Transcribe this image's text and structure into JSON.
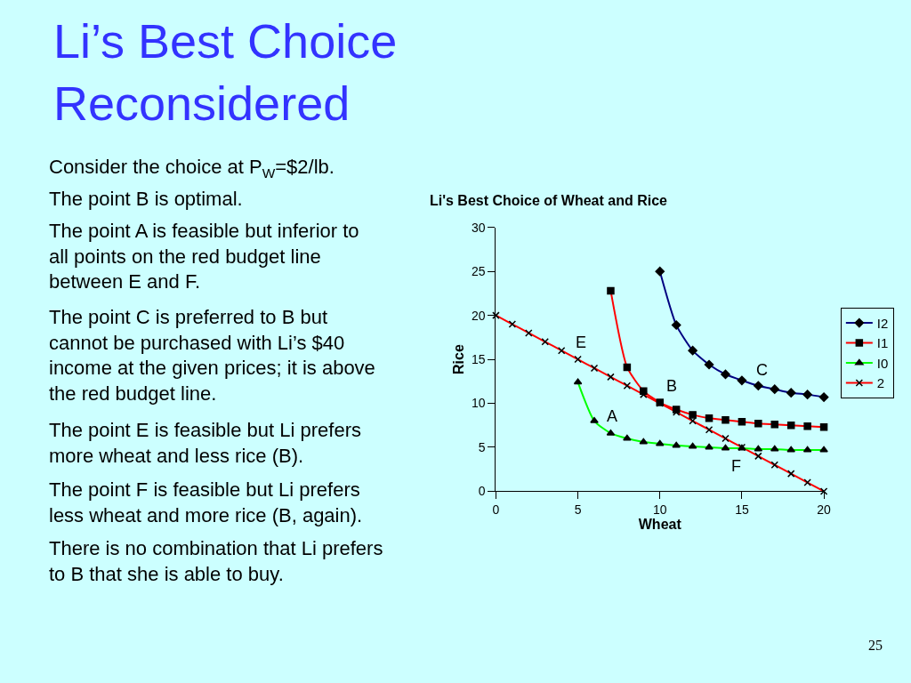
{
  "chart_data": {
    "type": "line",
    "title": "Li’s Best Choice Reconsidered",
    "subtitle": "Li's Best Choice of Wheat and Rice",
    "xlabel": "Wheat",
    "ylabel": "Rice",
    "xlim": [
      0,
      20
    ],
    "xticks": [
      0,
      5,
      10,
      15,
      20
    ],
    "ylim": [
      0,
      30
    ],
    "yticks": [
      0,
      5,
      10,
      15,
      20,
      25,
      30
    ],
    "grid": false,
    "legend": "right",
    "series": [
      {
        "name": "I2",
        "color": "#000080",
        "marker": "diamond",
        "x": [
          10,
          11,
          12,
          13,
          14,
          15,
          16,
          17,
          18,
          19,
          20
        ],
        "values": [
          25,
          18.9,
          16,
          14.4,
          13.3,
          12.6,
          12.0,
          11.6,
          11.2,
          11.0,
          10.7
        ]
      },
      {
        "name": "I1",
        "color": "#ff0000",
        "marker": "square",
        "x": [
          7,
          8,
          9,
          10,
          11,
          12,
          13,
          14,
          15,
          16,
          17,
          18,
          19,
          20
        ],
        "values": [
          22.8,
          14.1,
          11.4,
          10.1,
          9.3,
          8.7,
          8.3,
          8.1,
          7.9,
          7.7,
          7.6,
          7.5,
          7.4,
          7.3
        ]
      },
      {
        "name": "I0",
        "color": "#00ff00",
        "marker": "triangle",
        "x": [
          5,
          6,
          7,
          8,
          9,
          10,
          11,
          12,
          13,
          14,
          15,
          16,
          17,
          18,
          19,
          20
        ],
        "values": [
          12.4,
          8.0,
          6.6,
          6.0,
          5.6,
          5.4,
          5.2,
          5.1,
          5.0,
          4.9,
          4.9,
          4.8,
          4.8,
          4.7,
          4.7,
          4.7
        ]
      },
      {
        "name": "2",
        "color": "#ff0000",
        "marker": "cross",
        "x": [
          0,
          1,
          2,
          3,
          4,
          5,
          6,
          7,
          8,
          9,
          10,
          11,
          12,
          13,
          14,
          15,
          16,
          17,
          18,
          19,
          20
        ],
        "values": [
          20,
          19,
          18,
          17,
          16,
          15,
          14,
          13,
          12,
          11,
          10,
          9,
          8,
          7,
          6,
          5,
          4,
          3,
          2,
          1,
          0
        ]
      }
    ],
    "annotations": [
      {
        "text": "E",
        "x": 5,
        "y": 15
      },
      {
        "text": "A",
        "x": 7,
        "y": 6.6
      },
      {
        "text": "B",
        "x": 10,
        "y": 10
      },
      {
        "text": "C",
        "x": 16,
        "y": 12.0
      },
      {
        "text": "F",
        "x": 15,
        "y": 5
      },
      "Consider the choice at P$_{W}$=$2/lb.",
      "The point B is optimal.",
      "The point A is feasible but inferior to all points on the red budget line between E and F.",
      "The point C is preferred to B but cannot be purchased with Li’s $40 income at the given prices; it is above the red budget line.",
      "The point E is feasible but Li prefers more wheat and less rice (B).",
      "The point F is feasible but Li prefers less wheat and more rice (B, again).",
      "There is no combination that Li prefers to B that she is able to buy.",
      "25"
    ]
  }
}
